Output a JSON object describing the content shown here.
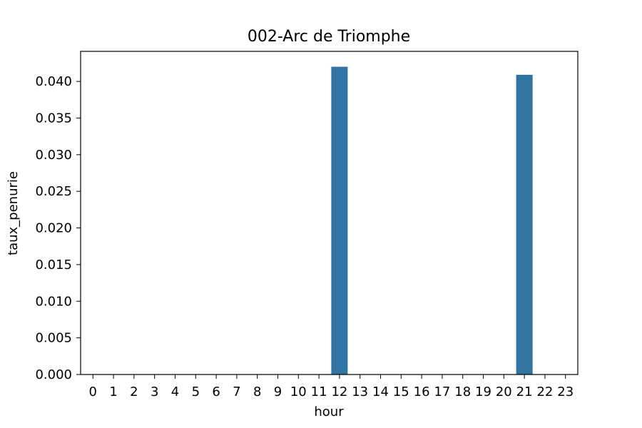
{
  "chart_data": {
    "type": "bar",
    "title": "002-Arc de Triomphe",
    "xlabel": "hour",
    "ylabel": "taux_penurie",
    "categories": [
      "0",
      "1",
      "2",
      "3",
      "4",
      "5",
      "6",
      "7",
      "8",
      "9",
      "10",
      "11",
      "12",
      "13",
      "14",
      "15",
      "16",
      "17",
      "18",
      "19",
      "20",
      "21",
      "22",
      "23"
    ],
    "values": [
      0,
      0,
      0,
      0,
      0,
      0,
      0,
      0,
      0,
      0,
      0,
      0,
      0.042,
      0,
      0,
      0,
      0,
      0,
      0,
      0,
      0,
      0.0409,
      0,
      0
    ],
    "ylim": [
      0,
      0.0441
    ],
    "yticks": [
      "0.000",
      "0.005",
      "0.010",
      "0.015",
      "0.020",
      "0.025",
      "0.030",
      "0.035",
      "0.040"
    ],
    "grid": false,
    "bar_color": "#3274a1"
  }
}
